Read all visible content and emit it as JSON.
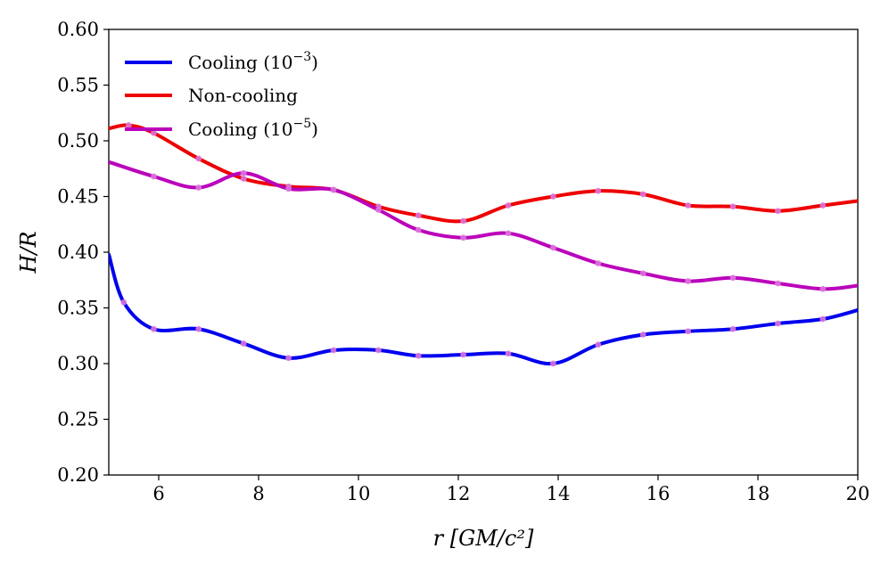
{
  "chart_data": {
    "type": "line",
    "title": "",
    "xlabel": "r [GM/c²]",
    "ylabel": "H/R",
    "xlim": [
      5,
      20
    ],
    "ylim": [
      0.2,
      0.6
    ],
    "x_ticks": [
      6,
      8,
      10,
      12,
      14,
      16,
      18,
      20
    ],
    "y_ticks": [
      0.2,
      0.25,
      0.3,
      0.35,
      0.4,
      0.45,
      0.5,
      0.55,
      0.6
    ],
    "x_tick_labels": [
      "6",
      "8",
      "10",
      "12",
      "14",
      "16",
      "18",
      "20"
    ],
    "y_tick_labels": [
      "0.20",
      "0.25",
      "0.30",
      "0.35",
      "0.40",
      "0.45",
      "0.50",
      "0.55",
      "0.60"
    ],
    "grid": false,
    "legend_position": "top-left",
    "series": [
      {
        "name": "Cooling (10⁻³)",
        "legend_base": "Cooling (10",
        "legend_exp": "−3",
        "legend_close": ")",
        "color": "#0000ee",
        "x": [
          5.0,
          5.3,
          5.9,
          6.8,
          7.7,
          8.6,
          9.5,
          10.4,
          11.2,
          12.1,
          13.0,
          13.9,
          14.8,
          15.7,
          16.6,
          17.5,
          18.4,
          19.3,
          20.0
        ],
        "values": [
          0.398,
          0.355,
          0.331,
          0.331,
          0.318,
          0.305,
          0.312,
          0.312,
          0.307,
          0.308,
          0.309,
          0.3,
          0.317,
          0.326,
          0.329,
          0.331,
          0.336,
          0.34,
          0.348
        ]
      },
      {
        "name": "Non-cooling",
        "legend_base": "Non-cooling",
        "legend_exp": "",
        "legend_close": "",
        "color": "#ee0000",
        "x": [
          5.0,
          5.4,
          5.9,
          6.8,
          7.7,
          8.6,
          9.5,
          10.4,
          11.2,
          12.1,
          13.0,
          13.9,
          14.8,
          15.7,
          16.6,
          17.5,
          18.4,
          19.3,
          20.0
        ],
        "values": [
          0.511,
          0.514,
          0.507,
          0.484,
          0.466,
          0.459,
          0.456,
          0.441,
          0.433,
          0.428,
          0.442,
          0.45,
          0.455,
          0.452,
          0.442,
          0.441,
          0.437,
          0.442,
          0.446
        ]
      },
      {
        "name": "Cooling (10⁻⁵)",
        "legend_base": "Cooling (10",
        "legend_exp": "−5",
        "legend_close": ")",
        "color": "#bb00bb",
        "x": [
          5.0,
          5.9,
          6.8,
          7.7,
          8.6,
          9.5,
          10.4,
          11.2,
          12.1,
          13.0,
          13.9,
          14.8,
          15.7,
          16.6,
          17.5,
          18.4,
          19.3,
          20.0
        ],
        "values": [
          0.481,
          0.468,
          0.458,
          0.471,
          0.457,
          0.456,
          0.438,
          0.42,
          0.413,
          0.417,
          0.404,
          0.39,
          0.381,
          0.374,
          0.377,
          0.372,
          0.367,
          0.37
        ]
      }
    ]
  }
}
